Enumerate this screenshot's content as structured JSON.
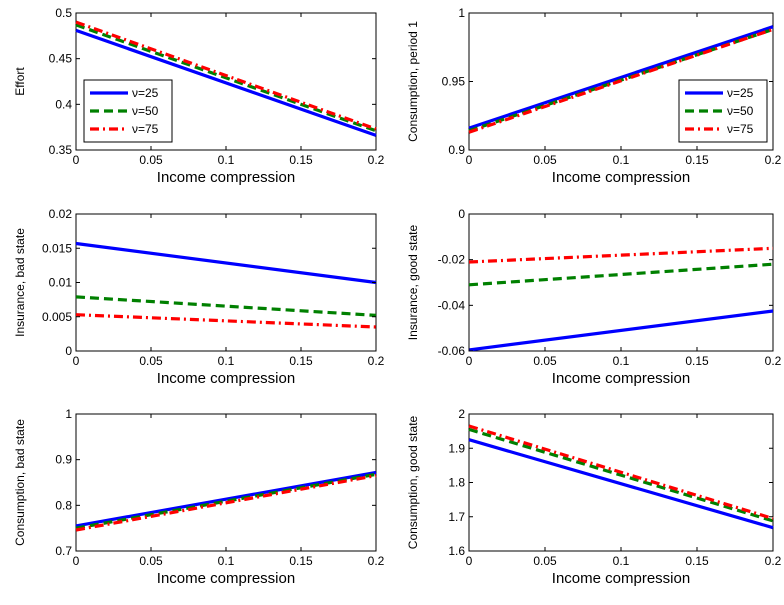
{
  "series_style": [
    {
      "color": "#0000ff",
      "dash": "",
      "width": 3.2
    },
    {
      "color": "#008000",
      "dash": "9,5",
      "width": 3.2
    },
    {
      "color": "#ff0000",
      "dash": "9,4,2,4",
      "width": 3.2
    }
  ],
  "chart_data": [
    {
      "type": "line",
      "xlabel": "Income compression",
      "ylabel": "Effort",
      "xlim": [
        0,
        0.2
      ],
      "ylim": [
        0.35,
        0.5
      ],
      "xticks": [
        "0",
        "0.05",
        "0.1",
        "0.15",
        "0.2"
      ],
      "yticks": [
        "0.35",
        "0.4",
        "0.45",
        "0.5"
      ],
      "legend_position": "bottom-left",
      "series": [
        {
          "name": "ν=25",
          "x": [
            0,
            0.2
          ],
          "y": [
            0.481,
            0.366
          ]
        },
        {
          "name": "ν=50",
          "x": [
            0,
            0.2
          ],
          "y": [
            0.487,
            0.371
          ]
        },
        {
          "name": "ν=75",
          "x": [
            0,
            0.2
          ],
          "y": [
            0.49,
            0.373
          ]
        }
      ]
    },
    {
      "type": "line",
      "xlabel": "Income compression",
      "ylabel": "Consumption, period 1",
      "xlim": [
        0,
        0.2
      ],
      "ylim": [
        0.9,
        1
      ],
      "xticks": [
        "0",
        "0.05",
        "0.1",
        "0.15",
        "0.2"
      ],
      "yticks": [
        "0.9",
        "0.95",
        "1"
      ],
      "legend_position": "bottom-right",
      "series": [
        {
          "name": "ν=25",
          "x": [
            0,
            0.2
          ],
          "y": [
            0.916,
            0.99
          ]
        },
        {
          "name": "ν=50",
          "x": [
            0,
            0.2
          ],
          "y": [
            0.914,
            0.988
          ]
        },
        {
          "name": "ν=75",
          "x": [
            0,
            0.2
          ],
          "y": [
            0.913,
            0.988
          ]
        }
      ]
    },
    {
      "type": "line",
      "xlabel": "Income compression",
      "ylabel": "Insurance, bad state",
      "xlim": [
        0,
        0.2
      ],
      "ylim": [
        0,
        0.02
      ],
      "xticks": [
        "0",
        "0.05",
        "0.1",
        "0.15",
        "0.2"
      ],
      "yticks": [
        "0",
        "0.005",
        "0.01",
        "0.015",
        "0.02"
      ],
      "series": [
        {
          "name": "ν=25",
          "x": [
            0,
            0.2
          ],
          "y": [
            0.0157,
            0.01
          ]
        },
        {
          "name": "ν=50",
          "x": [
            0,
            0.2
          ],
          "y": [
            0.0079,
            0.0052
          ]
        },
        {
          "name": "ν=75",
          "x": [
            0,
            0.2
          ],
          "y": [
            0.0053,
            0.0035
          ]
        }
      ]
    },
    {
      "type": "line",
      "xlabel": "Income compression",
      "ylabel": "Insurance, good state",
      "xlim": [
        0,
        0.2
      ],
      "ylim": [
        -0.06,
        0
      ],
      "xticks": [
        "0",
        "0.05",
        "0.1",
        "0.15",
        "0.2"
      ],
      "yticks": [
        "-0.06",
        "-0.04",
        "-0.02",
        "0"
      ],
      "series": [
        {
          "name": "ν=25",
          "x": [
            0,
            0.2
          ],
          "y": [
            -0.0595,
            -0.0425
          ]
        },
        {
          "name": "ν=50",
          "x": [
            0,
            0.2
          ],
          "y": [
            -0.031,
            -0.022
          ]
        },
        {
          "name": "ν=75",
          "x": [
            0,
            0.2
          ],
          "y": [
            -0.021,
            -0.015
          ]
        }
      ]
    },
    {
      "type": "line",
      "xlabel": "Income compression",
      "ylabel": "Consumption, bad state",
      "xlim": [
        0,
        0.2
      ],
      "ylim": [
        0.7,
        1
      ],
      "xticks": [
        "0",
        "0.05",
        "0.1",
        "0.15",
        "0.2"
      ],
      "yticks": [
        "0.7",
        "0.8",
        "0.9",
        "1"
      ],
      "series": [
        {
          "name": "ν=25",
          "x": [
            0,
            0.2
          ],
          "y": [
            0.755,
            0.872
          ]
        },
        {
          "name": "ν=50",
          "x": [
            0,
            0.2
          ],
          "y": [
            0.75,
            0.868
          ]
        },
        {
          "name": "ν=75",
          "x": [
            0,
            0.2
          ],
          "y": [
            0.746,
            0.865
          ]
        }
      ]
    },
    {
      "type": "line",
      "xlabel": "Income compression",
      "ylabel": "Consumption, good state",
      "xlim": [
        0,
        0.2
      ],
      "ylim": [
        1.6,
        2
      ],
      "xticks": [
        "0",
        "0.05",
        "0.1",
        "0.15",
        "0.2"
      ],
      "yticks": [
        "1.6",
        "1.7",
        "1.8",
        "1.9",
        "2"
      ],
      "series": [
        {
          "name": "ν=25",
          "x": [
            0,
            0.2
          ],
          "y": [
            1.925,
            1.668
          ]
        },
        {
          "name": "ν=50",
          "x": [
            0,
            0.2
          ],
          "y": [
            1.955,
            1.688
          ]
        },
        {
          "name": "ν=75",
          "x": [
            0,
            0.2
          ],
          "y": [
            1.965,
            1.695
          ]
        }
      ]
    }
  ]
}
